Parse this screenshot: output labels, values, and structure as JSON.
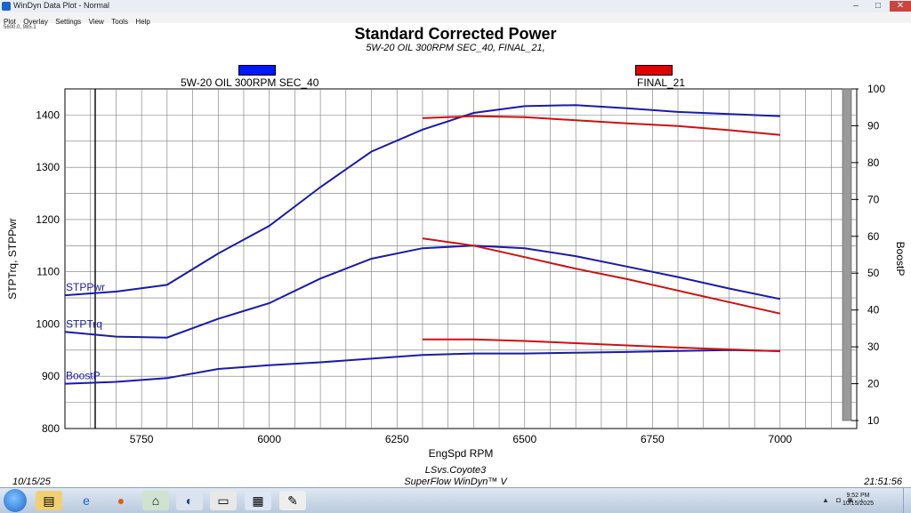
{
  "window": {
    "title": "WinDyn Data Plot - Normal",
    "buttons": {
      "minimize": "–",
      "maximize": "□",
      "close": "✕"
    }
  },
  "menu": [
    "Plot",
    "Overlay",
    "Settings",
    "View",
    "Tools",
    "Help"
  ],
  "cursor_readout": "5600.0, 985.1",
  "plot": {
    "title": "Standard Corrected Power",
    "subtitle": "5W-20 OIL 300RPM SEC_40, FINAL_21,",
    "legend": [
      {
        "label": "5W-20 OIL 300RPM SEC_40",
        "color": "#0018ff"
      },
      {
        "label": "FINAL_21",
        "color": "#e00000"
      }
    ],
    "footer": {
      "date": "10/15/25",
      "time": "21:51:56",
      "line1": "LSvs.Coyote3",
      "line2": "SuperFlow WinDyn™ V"
    }
  },
  "chart_data": {
    "type": "line",
    "xlabel": "EngSpd RPM",
    "ylabel": "STPTrq, STPPwr",
    "y2label": "BoostP",
    "xlim": [
      5600,
      7150
    ],
    "ylim": [
      800,
      1450
    ],
    "y2lim": [
      10,
      100
    ],
    "xticks": [
      5750,
      6000,
      6250,
      6500,
      6750,
      7000
    ],
    "yticks": [
      800,
      900,
      1000,
      1100,
      1200,
      1300,
      1400
    ],
    "y2ticks": [
      10,
      20,
      30,
      40,
      50,
      60,
      70,
      80,
      90,
      100
    ],
    "grid": true,
    "series": [
      {
        "name": "5W-20 OIL 300RPM SEC_40",
        "color": "#1a1aa8",
        "axis": "left",
        "label": "STPPwr",
        "x": [
          5600,
          5700,
          5800,
          5900,
          6000,
          6100,
          6200,
          6300,
          6400,
          6500,
          6600,
          6700,
          6800,
          6900,
          7000
        ],
        "y": [
          1055,
          1062,
          1075,
          1135,
          1188,
          1262,
          1330,
          1372,
          1404,
          1417,
          1419,
          1413,
          1406,
          1402,
          1398
        ]
      },
      {
        "name": "5W-20 OIL 300RPM SEC_40",
        "color": "#1a1aa8",
        "axis": "left",
        "label": "STPTrq",
        "x": [
          5600,
          5700,
          5800,
          5900,
          6000,
          6100,
          6200,
          6300,
          6400,
          6500,
          6600,
          6700,
          6800,
          6900,
          7000
        ],
        "y": [
          985,
          976,
          974,
          1010,
          1040,
          1087,
          1125,
          1145,
          1150,
          1145,
          1130,
          1110,
          1090,
          1068,
          1048
        ]
      },
      {
        "name": "5W-20 OIL 300RPM SEC_40",
        "color": "#1a1aa8",
        "axis": "right",
        "label": "BoostP",
        "x": [
          5600,
          5700,
          5800,
          5900,
          6000,
          6100,
          6200,
          6300,
          6400,
          6500,
          6600,
          6700,
          6800,
          6900,
          7000
        ],
        "y": [
          20,
          20.5,
          21.5,
          24,
          25,
          25.8,
          26.8,
          27.8,
          28.2,
          28.2,
          28.4,
          28.6,
          28.9,
          29.1,
          28.9
        ]
      },
      {
        "name": "FINAL_21",
        "color": "#cc1111",
        "axis": "left",
        "x": [
          6300,
          6400,
          6500,
          6600,
          6700,
          6800,
          6900,
          7000
        ],
        "y": [
          1394,
          1398,
          1396,
          1390,
          1384,
          1379,
          1371,
          1362
        ]
      },
      {
        "name": "FINAL_21",
        "color": "#cc1111",
        "axis": "left",
        "x": [
          6300,
          6400,
          6500,
          6600,
          6700,
          6800,
          6900,
          7000
        ],
        "y": [
          1164,
          1150,
          1128,
          1106,
          1086,
          1064,
          1042,
          1020
        ]
      },
      {
        "name": "FINAL_21",
        "color": "#cc1111",
        "axis": "right",
        "x": [
          6300,
          6400,
          6500,
          6600,
          6700,
          6800,
          6900,
          7000
        ],
        "y": [
          32,
          32,
          31.6,
          31,
          30.4,
          29.8,
          29.3,
          28.8
        ]
      }
    ]
  },
  "taskbar": {
    "icons": [
      "file-explorer-icon",
      "internet-explorer-icon",
      "firefox-icon",
      "windyn-icon",
      "hp-icon",
      "printer-icon",
      "dyno-icon",
      "paint-icon"
    ],
    "clock_time": "9:52 PM",
    "clock_date": "10/15/2025"
  }
}
